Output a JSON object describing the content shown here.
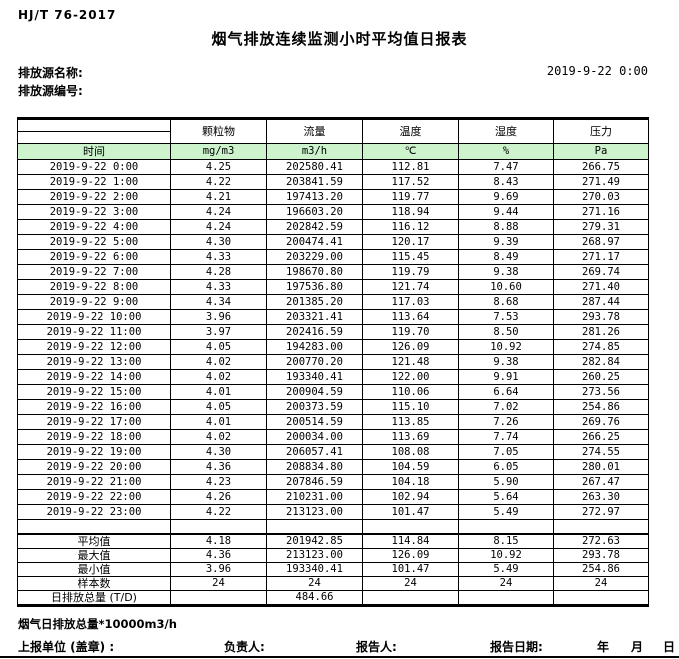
{
  "header": {
    "standard": "HJ/T  76-2017",
    "title": "烟气排放连续监测小时平均值日报表",
    "source_name_label": "排放源名称:",
    "source_id_label": "排放源编号:",
    "datetime": "2019-9-22  0:00"
  },
  "table": {
    "pollutant_headers": [
      "颗粒物",
      "流量",
      "温度",
      "湿度",
      "压力"
    ],
    "unit_row": {
      "time_label": "时间",
      "units": [
        "mg/m3",
        "m3/h",
        "℃",
        "%",
        "Pa"
      ]
    },
    "rows": [
      [
        "2019-9-22 0:00",
        "4.25",
        "202580.41",
        "112.81",
        "7.47",
        "266.75"
      ],
      [
        "2019-9-22 1:00",
        "4.22",
        "203841.59",
        "117.52",
        "8.43",
        "271.49"
      ],
      [
        "2019-9-22 2:00",
        "4.21",
        "197413.20",
        "119.77",
        "9.69",
        "270.03"
      ],
      [
        "2019-9-22 3:00",
        "4.24",
        "196603.20",
        "118.94",
        "9.44",
        "271.16"
      ],
      [
        "2019-9-22 4:00",
        "4.24",
        "202842.59",
        "116.12",
        "8.88",
        "279.31"
      ],
      [
        "2019-9-22 5:00",
        "4.30",
        "200474.41",
        "120.17",
        "9.39",
        "268.97"
      ],
      [
        "2019-9-22 6:00",
        "4.33",
        "203229.00",
        "115.45",
        "8.49",
        "271.17"
      ],
      [
        "2019-9-22 7:00",
        "4.28",
        "198670.80",
        "119.79",
        "9.38",
        "269.74"
      ],
      [
        "2019-9-22 8:00",
        "4.33",
        "197536.80",
        "121.74",
        "10.60",
        "271.40"
      ],
      [
        "2019-9-22 9:00",
        "4.34",
        "201385.20",
        "117.03",
        "8.68",
        "287.44"
      ],
      [
        "2019-9-22 10:00",
        "3.96",
        "203321.41",
        "113.64",
        "7.53",
        "293.78"
      ],
      [
        "2019-9-22 11:00",
        "3.97",
        "202416.59",
        "119.70",
        "8.50",
        "281.26"
      ],
      [
        "2019-9-22 12:00",
        "4.05",
        "194283.00",
        "126.09",
        "10.92",
        "274.85"
      ],
      [
        "2019-9-22 13:00",
        "4.02",
        "200770.20",
        "121.48",
        "9.38",
        "282.84"
      ],
      [
        "2019-9-22 14:00",
        "4.02",
        "193340.41",
        "122.00",
        "9.91",
        "260.25"
      ],
      [
        "2019-9-22 15:00",
        "4.01",
        "200904.59",
        "110.06",
        "6.64",
        "273.56"
      ],
      [
        "2019-9-22 16:00",
        "4.05",
        "200373.59",
        "115.10",
        "7.02",
        "254.86"
      ],
      [
        "2019-9-22 17:00",
        "4.01",
        "200514.59",
        "113.85",
        "7.26",
        "269.76"
      ],
      [
        "2019-9-22 18:00",
        "4.02",
        "200034.00",
        "113.69",
        "7.74",
        "266.25"
      ],
      [
        "2019-9-22 19:00",
        "4.30",
        "206057.41",
        "108.08",
        "7.05",
        "274.55"
      ],
      [
        "2019-9-22 20:00",
        "4.36",
        "208834.80",
        "104.59",
        "6.05",
        "280.01"
      ],
      [
        "2019-9-22 21:00",
        "4.23",
        "207846.59",
        "104.18",
        "5.90",
        "267.47"
      ],
      [
        "2019-9-22 22:00",
        "4.26",
        "210231.00",
        "102.94",
        "5.64",
        "263.30"
      ],
      [
        "2019-9-22 23:00",
        "4.22",
        "213123.00",
        "101.47",
        "5.49",
        "272.97"
      ]
    ],
    "summary": [
      [
        "平均值",
        "4.18",
        "201942.85",
        "114.84",
        "8.15",
        "272.63"
      ],
      [
        "最大值",
        "4.36",
        "213123.00",
        "126.09",
        "10.92",
        "293.78"
      ],
      [
        "最小值",
        "3.96",
        "193340.41",
        "101.47",
        "5.49",
        "254.86"
      ],
      [
        "样本数",
        "24",
        "24",
        "24",
        "24",
        "24"
      ],
      [
        "日排放总量 (T/D)",
        "",
        "484.66",
        "",
        "",
        ""
      ]
    ]
  },
  "footer": {
    "note": "烟气日排放总量*10000m3/h",
    "report_unit_label": "上报单位 (盖章) :",
    "responsible_label": "负责人:",
    "reporter_label": "报告人:",
    "report_date_label": "报告日期:",
    "year_label": "年",
    "month_label": "月",
    "day_label": "日"
  },
  "colors": {
    "unit_row_green": "#cdf3cd",
    "border_black": "#000000"
  }
}
